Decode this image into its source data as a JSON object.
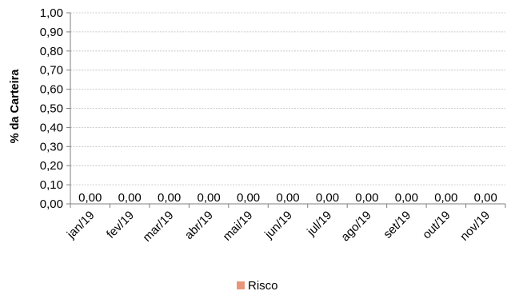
{
  "chart_data": {
    "type": "bar",
    "title": "",
    "xlabel": "",
    "ylabel": "% da Carteira",
    "categories": [
      "jan/19",
      "fev/19",
      "mar/19",
      "abr/19",
      "mai/19",
      "jun/19",
      "jul/19",
      "ago/19",
      "set/19",
      "out/19",
      "nov/19"
    ],
    "series": [
      {
        "name": "Risco",
        "values": [
          0,
          0,
          0,
          0,
          0,
          0,
          0,
          0,
          0,
          0,
          0
        ],
        "value_labels": [
          "0,00",
          "0,00",
          "0,00",
          "0,00",
          "0,00",
          "0,00",
          "0,00",
          "0,00",
          "0,00",
          "0,00",
          "0,00"
        ],
        "color": "#E8967A"
      }
    ],
    "ylim": [
      0,
      1
    ],
    "yticks": [
      "0,00",
      "0,10",
      "0,20",
      "0,30",
      "0,40",
      "0,50",
      "0,60",
      "0,70",
      "0,80",
      "0,90",
      "1,00"
    ],
    "grid": true,
    "legend_position": "bottom"
  }
}
